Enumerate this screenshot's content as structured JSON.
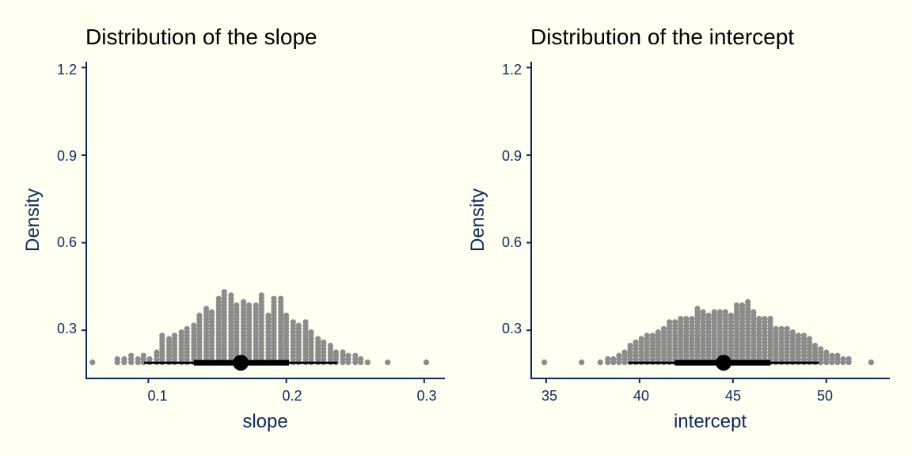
{
  "theme": {
    "background": "#FFFFF2",
    "axis_color": "#0B2A5B",
    "dot_color": "#8C8C8C",
    "interval_color": "#000000"
  },
  "chart_data": [
    {
      "type": "dotplot",
      "title": "Distribution of the slope",
      "xlabel": "slope",
      "ylabel": "Density",
      "xlim": [
        0.055,
        0.315
      ],
      "ylim": [
        0.135,
        1.22
      ],
      "xticks": [
        0.1,
        0.2,
        0.3
      ],
      "xtick_labels": [
        "0.1",
        "0.2",
        "0.3"
      ],
      "yticks": [
        0.3,
        0.6,
        0.9,
        1.2
      ],
      "ytick_labels": [
        "0.3",
        "0.6",
        "0.9",
        "1.2"
      ],
      "grid": false,
      "dot_baseline": 0.19,
      "dot_step": 0.0115,
      "bins": [
        {
          "x": 0.0595,
          "count": 1
        },
        {
          "x": 0.0775,
          "count": 2
        },
        {
          "x": 0.0825,
          "count": 2
        },
        {
          "x": 0.0875,
          "count": 3
        },
        {
          "x": 0.0925,
          "count": 2
        },
        {
          "x": 0.0965,
          "count": 3
        },
        {
          "x": 0.101,
          "count": 2
        },
        {
          "x": 0.106,
          "count": 4
        },
        {
          "x": 0.11,
          "count": 9
        },
        {
          "x": 0.115,
          "count": 8
        },
        {
          "x": 0.119,
          "count": 9
        },
        {
          "x": 0.124,
          "count": 10
        },
        {
          "x": 0.128,
          "count": 11
        },
        {
          "x": 0.133,
          "count": 12
        },
        {
          "x": 0.137,
          "count": 15
        },
        {
          "x": 0.142,
          "count": 17
        },
        {
          "x": 0.146,
          "count": 16
        },
        {
          "x": 0.151,
          "count": 20
        },
        {
          "x": 0.155,
          "count": 22
        },
        {
          "x": 0.16,
          "count": 21
        },
        {
          "x": 0.164,
          "count": 18
        },
        {
          "x": 0.169,
          "count": 19
        },
        {
          "x": 0.173,
          "count": 18
        },
        {
          "x": 0.178,
          "count": 18
        },
        {
          "x": 0.182,
          "count": 21
        },
        {
          "x": 0.187,
          "count": 15
        },
        {
          "x": 0.191,
          "count": 20
        },
        {
          "x": 0.196,
          "count": 20
        },
        {
          "x": 0.2,
          "count": 15
        },
        {
          "x": 0.205,
          "count": 13
        },
        {
          "x": 0.209,
          "count": 12
        },
        {
          "x": 0.214,
          "count": 13
        },
        {
          "x": 0.218,
          "count": 10
        },
        {
          "x": 0.223,
          "count": 8
        },
        {
          "x": 0.227,
          "count": 7
        },
        {
          "x": 0.232,
          "count": 6
        },
        {
          "x": 0.236,
          "count": 4
        },
        {
          "x": 0.241,
          "count": 4
        },
        {
          "x": 0.245,
          "count": 3
        },
        {
          "x": 0.25,
          "count": 3
        },
        {
          "x": 0.254,
          "count": 2
        },
        {
          "x": 0.259,
          "count": 1
        },
        {
          "x": 0.2735,
          "count": 1
        },
        {
          "x": 0.3015,
          "count": 1
        }
      ],
      "interval": {
        "point": 0.167,
        "inner": [
          0.133,
          0.202
        ],
        "outer": [
          0.097,
          0.237
        ]
      }
    },
    {
      "type": "dotplot",
      "title": "Distribution of the intercept",
      "xlabel": "intercept",
      "ylabel": "Density",
      "xlim": [
        34.2,
        53.4
      ],
      "ylim": [
        0.135,
        1.22
      ],
      "xticks": [
        35,
        40,
        45,
        50
      ],
      "xtick_labels": [
        "35",
        "40",
        "45",
        "50"
      ],
      "yticks": [
        0.3,
        0.6,
        0.9,
        1.2
      ],
      "ytick_labels": [
        "0.3",
        "0.6",
        "0.9",
        "1.2"
      ],
      "grid": false,
      "dot_baseline": 0.19,
      "dot_step": 0.0115,
      "bins": [
        {
          "x": 34.9,
          "count": 1
        },
        {
          "x": 36.9,
          "count": 1
        },
        {
          "x": 37.9,
          "count": 1
        },
        {
          "x": 38.3,
          "count": 2
        },
        {
          "x": 38.6,
          "count": 2
        },
        {
          "x": 38.9,
          "count": 3
        },
        {
          "x": 39.2,
          "count": 4
        },
        {
          "x": 39.5,
          "count": 6
        },
        {
          "x": 39.8,
          "count": 7
        },
        {
          "x": 40.1,
          "count": 8
        },
        {
          "x": 40.4,
          "count": 9
        },
        {
          "x": 40.7,
          "count": 9
        },
        {
          "x": 41.0,
          "count": 10
        },
        {
          "x": 41.3,
          "count": 11
        },
        {
          "x": 41.6,
          "count": 13
        },
        {
          "x": 41.9,
          "count": 13
        },
        {
          "x": 42.2,
          "count": 14
        },
        {
          "x": 42.5,
          "count": 14
        },
        {
          "x": 42.8,
          "count": 14
        },
        {
          "x": 43.1,
          "count": 17
        },
        {
          "x": 43.4,
          "count": 16
        },
        {
          "x": 43.7,
          "count": 15
        },
        {
          "x": 44.0,
          "count": 16
        },
        {
          "x": 44.3,
          "count": 16
        },
        {
          "x": 44.6,
          "count": 16
        },
        {
          "x": 44.9,
          "count": 15
        },
        {
          "x": 45.2,
          "count": 18
        },
        {
          "x": 45.5,
          "count": 18
        },
        {
          "x": 45.8,
          "count": 19
        },
        {
          "x": 46.1,
          "count": 16
        },
        {
          "x": 46.4,
          "count": 14
        },
        {
          "x": 46.7,
          "count": 14
        },
        {
          "x": 47.0,
          "count": 14
        },
        {
          "x": 47.3,
          "count": 11
        },
        {
          "x": 47.6,
          "count": 11
        },
        {
          "x": 47.9,
          "count": 11
        },
        {
          "x": 48.2,
          "count": 10
        },
        {
          "x": 48.5,
          "count": 9
        },
        {
          "x": 48.8,
          "count": 9
        },
        {
          "x": 49.1,
          "count": 8
        },
        {
          "x": 49.4,
          "count": 6
        },
        {
          "x": 49.7,
          "count": 5
        },
        {
          "x": 50.0,
          "count": 4
        },
        {
          "x": 50.3,
          "count": 3
        },
        {
          "x": 50.6,
          "count": 3
        },
        {
          "x": 50.9,
          "count": 2
        },
        {
          "x": 51.2,
          "count": 2
        },
        {
          "x": 52.4,
          "count": 1
        }
      ],
      "interval": {
        "point": 44.5,
        "inner": [
          41.9,
          47.0
        ],
        "outer": [
          39.4,
          49.6
        ]
      }
    }
  ]
}
